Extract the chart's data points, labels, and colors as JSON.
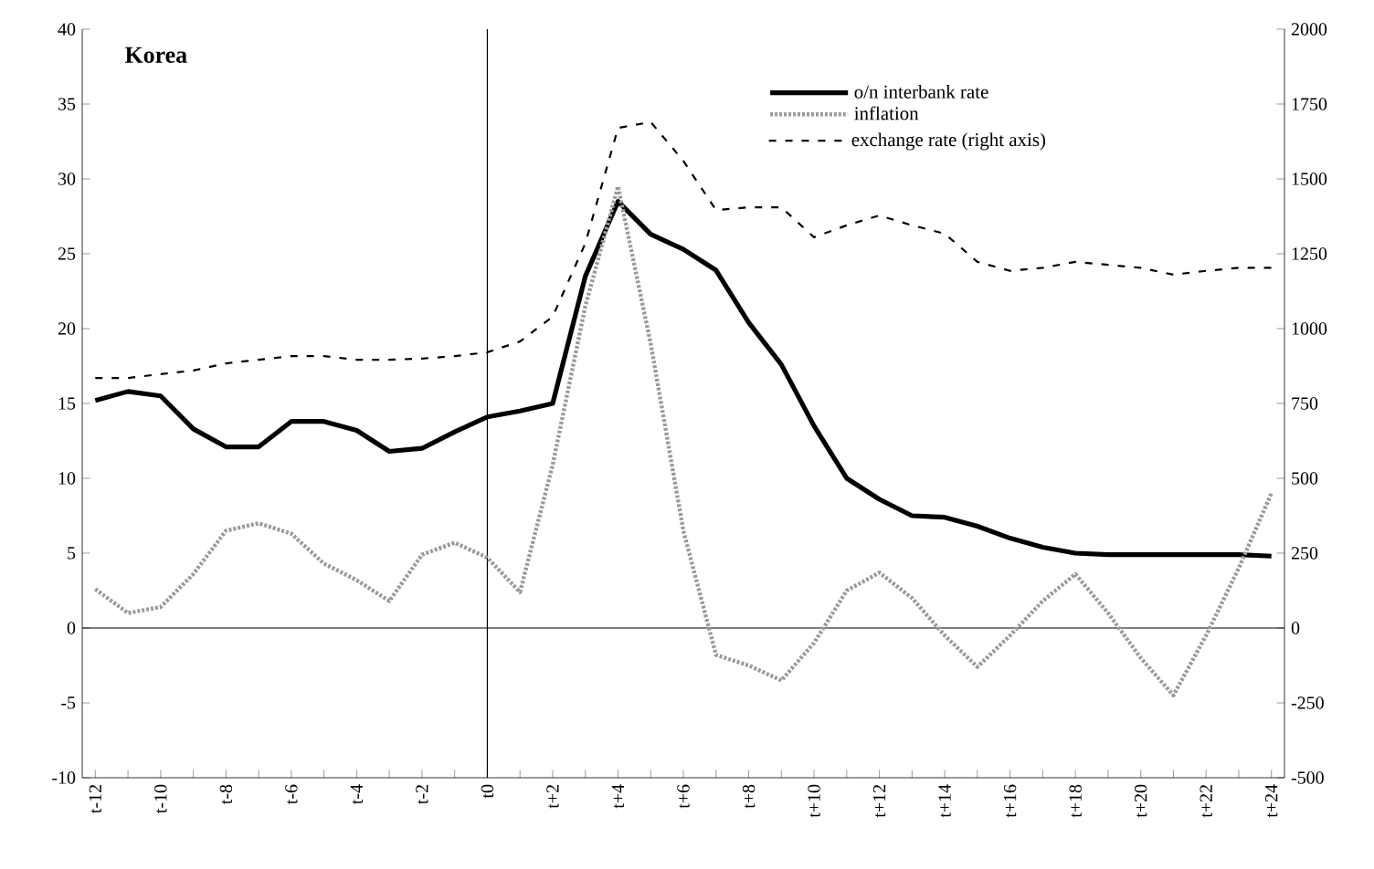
{
  "chart_data": {
    "type": "line",
    "title": "Korea",
    "categories": [
      "t-12",
      null,
      "t-10",
      null,
      "t-8",
      null,
      "t-6",
      null,
      "t-4",
      null,
      "t-2",
      null,
      "t0",
      null,
      "t+2",
      null,
      "t+4",
      null,
      "t+6",
      null,
      "t+8",
      null,
      "t+10",
      null,
      "t+12",
      null,
      "t+14",
      null,
      "t+16",
      null,
      "t+18",
      null,
      "t+20",
      null,
      "t+22",
      null,
      "t+24"
    ],
    "series": [
      {
        "name": "o/n interbank rate",
        "color": "#000000",
        "line_style": "solid",
        "values": [
          15.2,
          15.8,
          15.5,
          13.3,
          12.1,
          12.1,
          13.8,
          13.8,
          13.2,
          11.8,
          12.0,
          13.1,
          14.1,
          14.5,
          15.0,
          23.5,
          28.5,
          26.3,
          25.3,
          23.9,
          20.4,
          17.6,
          13.5,
          10.0,
          8.6,
          7.5,
          7.4,
          6.8,
          6.0,
          5.4,
          5.0,
          4.9,
          4.9,
          4.9,
          4.9,
          4.9,
          4.8
        ]
      },
      {
        "name": "inflation",
        "color": "#9a9a9a",
        "line_style": "dotted",
        "values": [
          2.6,
          1.0,
          1.4,
          3.6,
          6.5,
          7.0,
          6.3,
          4.3,
          3.2,
          1.8,
          4.9,
          5.7,
          4.7,
          2.4,
          10.9,
          21.5,
          29.5,
          19.0,
          6.5,
          -1.8,
          -2.5,
          -3.5,
          -1.0,
          2.5,
          3.7,
          2.0,
          -0.5,
          -2.6,
          -0.5,
          1.8,
          3.6,
          1.0,
          -2.0,
          -4.5,
          -0.5,
          4.0,
          9.0
        ]
      },
      {
        "name": "exchange rate (right axis)",
        "color": "#000000",
        "line_style": "dashed",
        "axis": "y2",
        "values": [
          835,
          835,
          848,
          860,
          884,
          896,
          908,
          908,
          896,
          896,
          900,
          908,
          921,
          957,
          1040,
          1285,
          1670,
          1690,
          1560,
          1396,
          1405,
          1405,
          1305,
          1345,
          1378,
          1345,
          1317,
          1223,
          1193,
          1203,
          1223,
          1213,
          1203,
          1180,
          1193,
          1203,
          1203
        ]
      }
    ],
    "ylim": [
      -10,
      40
    ],
    "yticks": [
      -10,
      -5,
      0,
      5,
      10,
      15,
      20,
      25,
      30,
      35,
      40
    ],
    "y2lim": [
      -500,
      2000
    ],
    "y2ticks": [
      -500,
      -250,
      0,
      250,
      500,
      750,
      1000,
      1250,
      1500,
      1750,
      2000
    ],
    "ref_lines": [
      {
        "axis": "x",
        "value": "t0",
        "color": "#000000"
      },
      {
        "axis": "y",
        "value": 0,
        "color": "#000000"
      }
    ],
    "legend": "top right",
    "marker": "none",
    "grid": false
  }
}
